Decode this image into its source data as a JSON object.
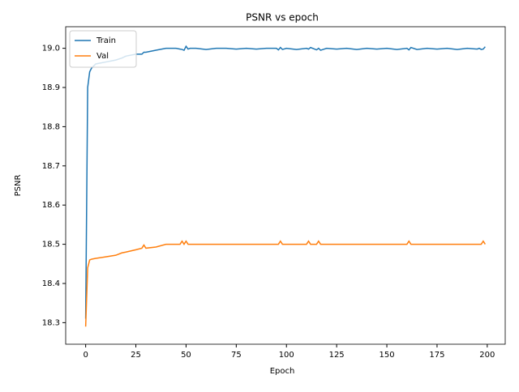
{
  "chart_data": {
    "type": "line",
    "title": "PSNR vs epoch",
    "xlabel": "Epoch",
    "ylabel": "PSNR",
    "x": [
      0,
      1,
      2,
      3,
      4,
      5,
      10,
      15,
      18,
      20,
      25,
      28,
      29,
      30,
      35,
      40,
      45,
      47,
      48,
      49,
      50,
      51,
      52,
      55,
      60,
      65,
      70,
      75,
      80,
      85,
      90,
      95,
      96,
      97,
      98,
      100,
      105,
      110,
      111,
      112,
      115,
      116,
      117,
      120,
      125,
      130,
      135,
      140,
      145,
      150,
      155,
      160,
      161,
      162,
      165,
      170,
      175,
      180,
      185,
      190,
      195,
      196,
      197,
      198,
      199
    ],
    "series": [
      {
        "name": "Train",
        "color": "#1f77b4",
        "values": [
          18.31,
          18.9,
          18.94,
          18.95,
          18.955,
          18.96,
          18.965,
          18.97,
          18.975,
          18.98,
          18.985,
          18.985,
          18.99,
          18.99,
          18.995,
          19.0,
          19.0,
          18.998,
          18.997,
          18.995,
          19.005,
          18.998,
          19.0,
          19.0,
          18.997,
          19.0,
          19.0,
          18.998,
          19.0,
          18.998,
          19.0,
          19.0,
          18.996,
          19.002,
          18.997,
          19.0,
          18.997,
          19.0,
          18.998,
          19.002,
          18.996,
          19.0,
          18.995,
          19.0,
          18.998,
          19.0,
          18.997,
          19.0,
          18.998,
          19.0,
          18.997,
          19.0,
          18.996,
          19.002,
          18.997,
          19.0,
          18.998,
          19.0,
          18.997,
          19.0,
          18.998,
          19.0,
          18.997,
          18.998,
          19.004
        ]
      },
      {
        "name": "Val",
        "color": "#ff7f0e",
        "values": [
          18.29,
          18.44,
          18.46,
          18.462,
          18.463,
          18.464,
          18.468,
          18.472,
          18.478,
          18.48,
          18.486,
          18.49,
          18.498,
          18.49,
          18.493,
          18.5,
          18.5,
          18.5,
          18.508,
          18.5,
          18.508,
          18.5,
          18.5,
          18.5,
          18.5,
          18.5,
          18.5,
          18.5,
          18.5,
          18.5,
          18.5,
          18.5,
          18.5,
          18.508,
          18.5,
          18.5,
          18.5,
          18.5,
          18.508,
          18.5,
          18.5,
          18.508,
          18.5,
          18.5,
          18.5,
          18.5,
          18.5,
          18.5,
          18.5,
          18.5,
          18.5,
          18.5,
          18.508,
          18.5,
          18.5,
          18.5,
          18.5,
          18.5,
          18.5,
          18.5,
          18.5,
          18.5,
          18.5,
          18.508,
          18.5
        ]
      }
    ],
    "xlim": [
      -9.95,
      208.95
    ],
    "ylim": [
      18.245,
      19.055
    ],
    "xticks": [
      0,
      25,
      50,
      75,
      100,
      125,
      150,
      175,
      200
    ],
    "yticks": [
      18.3,
      18.4,
      18.5,
      18.6,
      18.7,
      18.8,
      18.9,
      {
        "value": 19.0,
        "label": "19.0"
      }
    ],
    "legend": "upper left"
  }
}
